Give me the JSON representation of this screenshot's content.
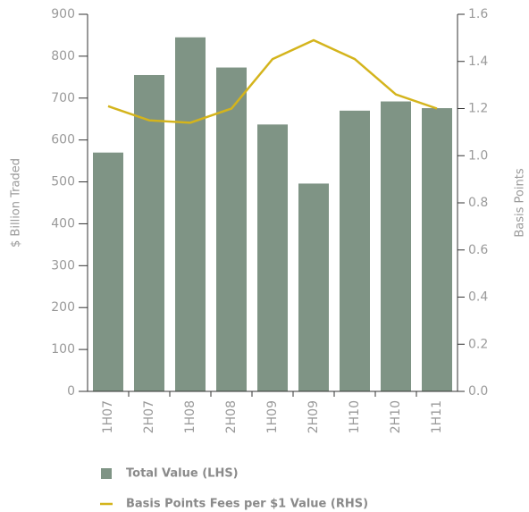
{
  "chart_data": {
    "type": "bar_line",
    "categories": [
      "1H07",
      "2H07",
      "1H08",
      "2H08",
      "1H09",
      "2H09",
      "1H10",
      "2H10",
      "1H11"
    ],
    "series": [
      {
        "name": "Total Value (LHS)",
        "type": "bar",
        "color": "#7f9485",
        "values": [
          570,
          755,
          845,
          773,
          637,
          496,
          670,
          692,
          676
        ]
      },
      {
        "name": "Basis Points Fees per $1 Value (RHS)",
        "type": "line",
        "axis": "y2",
        "color": "#d4b41c",
        "values": [
          1.21,
          1.15,
          1.14,
          1.2,
          1.41,
          1.49,
          1.41,
          1.26,
          1.2
        ]
      }
    ],
    "ylabel": "$ Billion Traded",
    "y2label": "Basis Points",
    "ylim": [
      0,
      900
    ],
    "yticks": [
      0,
      100,
      200,
      300,
      400,
      500,
      600,
      700,
      800,
      900
    ],
    "y2lim": [
      0,
      1.6
    ],
    "y2ticks": [
      {
        "value": 0,
        "label": "0.0"
      },
      0.2,
      0.4,
      0.6,
      0.8,
      {
        "value": 1,
        "label": "1.0"
      },
      1.2,
      1.4,
      1.6
    ],
    "legend": "bottom"
  }
}
